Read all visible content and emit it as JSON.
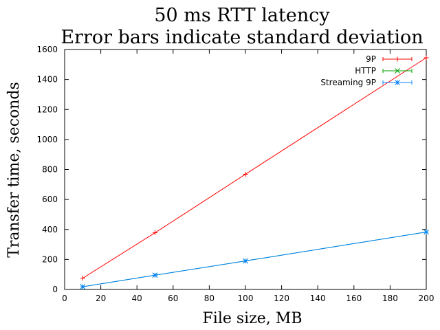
{
  "chart_data": {
    "type": "line",
    "title": "50 ms RTT latency",
    "subtitle": "Error bars indicate standard deviation",
    "xlabel": "File size, MB",
    "ylabel": "Transfer time, seconds",
    "xlim": [
      0,
      200
    ],
    "ylim": [
      0,
      1600
    ],
    "xticks": [
      0,
      20,
      40,
      60,
      80,
      100,
      120,
      140,
      160,
      180,
      200
    ],
    "yticks": [
      0,
      200,
      400,
      600,
      800,
      1000,
      1200,
      1400,
      1600
    ],
    "grid": false,
    "legend_position": "top-right",
    "series": [
      {
        "name": "9P",
        "color": "#ff0000",
        "marker": "plus",
        "x": [
          10,
          50,
          100,
          200
        ],
        "y": [
          75,
          378,
          768,
          1545
        ]
      },
      {
        "name": "HTTP",
        "color": "#00a000",
        "marker": "cross",
        "x": [
          10,
          50,
          100,
          200
        ],
        "y": [
          18,
          95,
          190,
          383
        ]
      },
      {
        "name": "Streaming 9P",
        "color": "#0080ff",
        "marker": "asterisk",
        "x": [
          10,
          50,
          100,
          200
        ],
        "y": [
          18,
          95,
          190,
          383
        ]
      }
    ]
  }
}
